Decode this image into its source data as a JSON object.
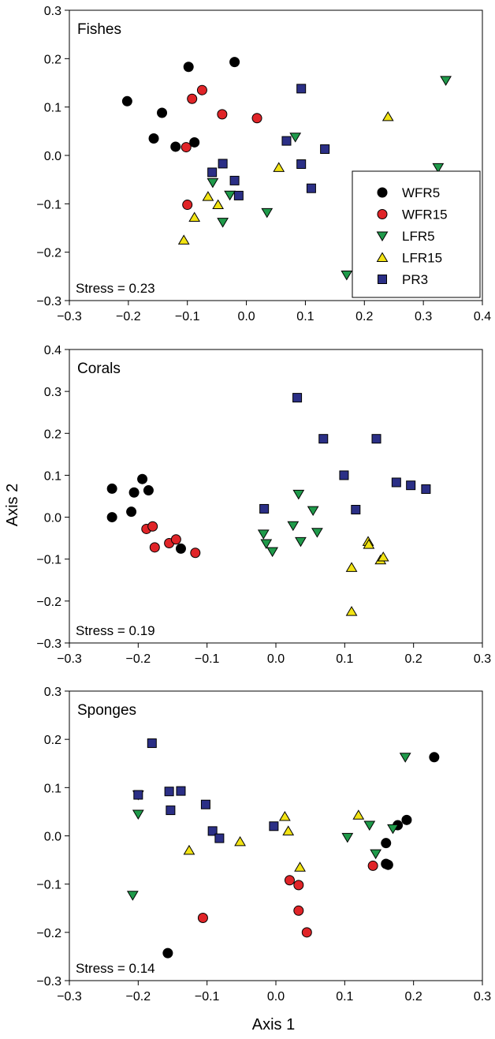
{
  "xlabel": "Axis 1",
  "ylabel": "Axis 2",
  "groups": [
    {
      "name": "WFR5",
      "shape": "circle",
      "color": "#000000"
    },
    {
      "name": "WFR15",
      "shape": "circle",
      "color": "#e02428"
    },
    {
      "name": "LFR5",
      "shape": "triangle-down",
      "color": "#1f9a4a"
    },
    {
      "name": "LFR15",
      "shape": "triangle-up",
      "color": "#f2e313"
    },
    {
      "name": "PR3",
      "shape": "square",
      "color": "#2b2f86"
    }
  ],
  "chart_data": [
    {
      "type": "scatter",
      "title": "Fishes",
      "stress": "Stress = 0.23",
      "legend": "inside-lower-right",
      "xlim": [
        -0.3,
        0.4
      ],
      "ylim": [
        -0.3,
        0.3
      ],
      "xticks": [
        "−0.3",
        "−0.2",
        "−0.1",
        "0.0",
        "0.1",
        "0.2",
        "0.3",
        "0.4"
      ],
      "yticks": [
        "−0.3",
        "−0.2",
        "−0.1",
        "0.0",
        "0.1",
        "0.2",
        "0.3"
      ],
      "series": [
        {
          "name": "WFR5",
          "points": [
            [
              -0.202,
              0.112
            ],
            [
              -0.098,
              0.183
            ],
            [
              -0.02,
              0.193
            ],
            [
              -0.143,
              0.088
            ],
            [
              -0.157,
              0.035
            ],
            [
              -0.12,
              0.018
            ],
            [
              -0.088,
              0.027
            ]
          ]
        },
        {
          "name": "WFR15",
          "points": [
            [
              -0.075,
              0.135
            ],
            [
              -0.092,
              0.117
            ],
            [
              -0.041,
              0.085
            ],
            [
              0.018,
              0.077
            ],
            [
              -0.102,
              0.017
            ],
            [
              -0.1,
              -0.102
            ]
          ]
        },
        {
          "name": "LFR5",
          "points": [
            [
              0.338,
              0.155
            ],
            [
              0.083,
              0.038
            ],
            [
              -0.057,
              -0.056
            ],
            [
              -0.028,
              -0.082
            ],
            [
              -0.04,
              -0.138
            ],
            [
              0.035,
              -0.118
            ],
            [
              0.325,
              -0.025
            ],
            [
              0.17,
              -0.247
            ]
          ]
        },
        {
          "name": "LFR15",
          "points": [
            [
              0.24,
              0.08
            ],
            [
              0.055,
              -0.025
            ],
            [
              -0.065,
              -0.085
            ],
            [
              -0.048,
              -0.102
            ],
            [
              -0.088,
              -0.128
            ],
            [
              -0.106,
              -0.175
            ]
          ]
        },
        {
          "name": "PR3",
          "points": [
            [
              0.093,
              0.138
            ],
            [
              0.068,
              0.03
            ],
            [
              0.133,
              0.013
            ],
            [
              0.093,
              -0.018
            ],
            [
              -0.04,
              -0.017
            ],
            [
              -0.058,
              -0.035
            ],
            [
              -0.02,
              -0.052
            ],
            [
              -0.013,
              -0.083
            ],
            [
              0.11,
              -0.068
            ]
          ]
        }
      ]
    },
    {
      "type": "scatter",
      "title": "Corals",
      "stress": "Stress = 0.19",
      "xlim": [
        -0.3,
        0.3
      ],
      "ylim": [
        -0.3,
        0.4
      ],
      "xticks": [
        "−0.3",
        "−0.2",
        "−0.1",
        "0.0",
        "0.1",
        "0.2",
        "0.3"
      ],
      "yticks": [
        "−0.3",
        "−0.2",
        "−0.1",
        "0.0",
        "0.1",
        "0.2",
        "0.3",
        "0.4"
      ],
      "series": [
        {
          "name": "WFR5",
          "points": [
            [
              -0.238,
              0.068
            ],
            [
              -0.238,
              0.0
            ],
            [
              -0.21,
              0.013
            ],
            [
              -0.206,
              0.059
            ],
            [
              -0.194,
              0.091
            ],
            [
              -0.185,
              0.064
            ],
            [
              -0.138,
              -0.075
            ]
          ]
        },
        {
          "name": "WFR15",
          "points": [
            [
              -0.188,
              -0.028
            ],
            [
              -0.179,
              -0.022
            ],
            [
              -0.176,
              -0.072
            ],
            [
              -0.155,
              -0.062
            ],
            [
              -0.145,
              -0.053
            ],
            [
              -0.117,
              -0.085
            ]
          ]
        },
        {
          "name": "LFR5",
          "points": [
            [
              -0.018,
              -0.04
            ],
            [
              -0.014,
              -0.063
            ],
            [
              -0.005,
              -0.082
            ],
            [
              0.025,
              -0.02
            ],
            [
              0.033,
              0.055
            ],
            [
              0.036,
              -0.058
            ],
            [
              0.054,
              0.016
            ],
            [
              0.06,
              -0.036
            ]
          ]
        },
        {
          "name": "LFR15",
          "points": [
            [
              0.11,
              -0.12
            ],
            [
              0.11,
              -0.225
            ],
            [
              0.134,
              -0.058
            ],
            [
              0.135,
              -0.065
            ],
            [
              0.152,
              -0.102
            ],
            [
              0.156,
              -0.095
            ]
          ]
        },
        {
          "name": "PR3",
          "points": [
            [
              0.031,
              0.285
            ],
            [
              0.069,
              0.187
            ],
            [
              0.146,
              0.187
            ],
            [
              0.099,
              0.1
            ],
            [
              0.116,
              0.018
            ],
            [
              0.175,
              0.083
            ],
            [
              0.196,
              0.076
            ],
            [
              0.218,
              0.067
            ],
            [
              -0.017,
              0.02
            ]
          ]
        }
      ]
    },
    {
      "type": "scatter",
      "title": "Sponges",
      "stress": "Stress = 0.14",
      "xlim": [
        -0.3,
        0.3
      ],
      "ylim": [
        -0.3,
        0.3
      ],
      "xticks": [
        "−0.3",
        "−0.2",
        "−0.1",
        "0.0",
        "0.1",
        "0.2",
        "0.3"
      ],
      "yticks": [
        "−0.3",
        "−0.2",
        "−0.1",
        "0.0",
        "0.1",
        "0.2",
        "0.3"
      ],
      "series": [
        {
          "name": "WFR5",
          "points": [
            [
              0.23,
              0.163
            ],
            [
              0.19,
              0.033
            ],
            [
              0.177,
              0.022
            ],
            [
              0.16,
              -0.015
            ],
            [
              0.16,
              -0.058
            ],
            [
              0.163,
              -0.06
            ],
            [
              -0.157,
              -0.243
            ]
          ]
        },
        {
          "name": "WFR15",
          "points": [
            [
              -0.106,
              -0.17
            ],
            [
              0.02,
              -0.092
            ],
            [
              0.033,
              -0.102
            ],
            [
              0.033,
              -0.155
            ],
            [
              0.045,
              -0.2
            ],
            [
              0.141,
              -0.062
            ]
          ]
        },
        {
          "name": "LFR5",
          "points": [
            [
              -0.2,
              0.085
            ],
            [
              -0.2,
              0.045
            ],
            [
              -0.208,
              -0.123
            ],
            [
              0.188,
              0.163
            ],
            [
              0.104,
              -0.003
            ],
            [
              0.136,
              0.022
            ],
            [
              0.145,
              -0.037
            ],
            [
              0.17,
              0.015
            ]
          ]
        },
        {
          "name": "LFR15",
          "points": [
            [
              -0.126,
              -0.03
            ],
            [
              -0.052,
              -0.012
            ],
            [
              0.013,
              0.04
            ],
            [
              0.018,
              0.01
            ],
            [
              0.035,
              -0.065
            ],
            [
              0.12,
              0.043
            ]
          ]
        },
        {
          "name": "PR3",
          "points": [
            [
              -0.18,
              0.192
            ],
            [
              -0.2,
              0.085
            ],
            [
              -0.155,
              0.092
            ],
            [
              -0.138,
              0.093
            ],
            [
              -0.153,
              0.053
            ],
            [
              -0.102,
              0.065
            ],
            [
              -0.092,
              0.01
            ],
            [
              -0.082,
              -0.005
            ],
            [
              -0.003,
              0.02
            ]
          ]
        }
      ]
    }
  ]
}
